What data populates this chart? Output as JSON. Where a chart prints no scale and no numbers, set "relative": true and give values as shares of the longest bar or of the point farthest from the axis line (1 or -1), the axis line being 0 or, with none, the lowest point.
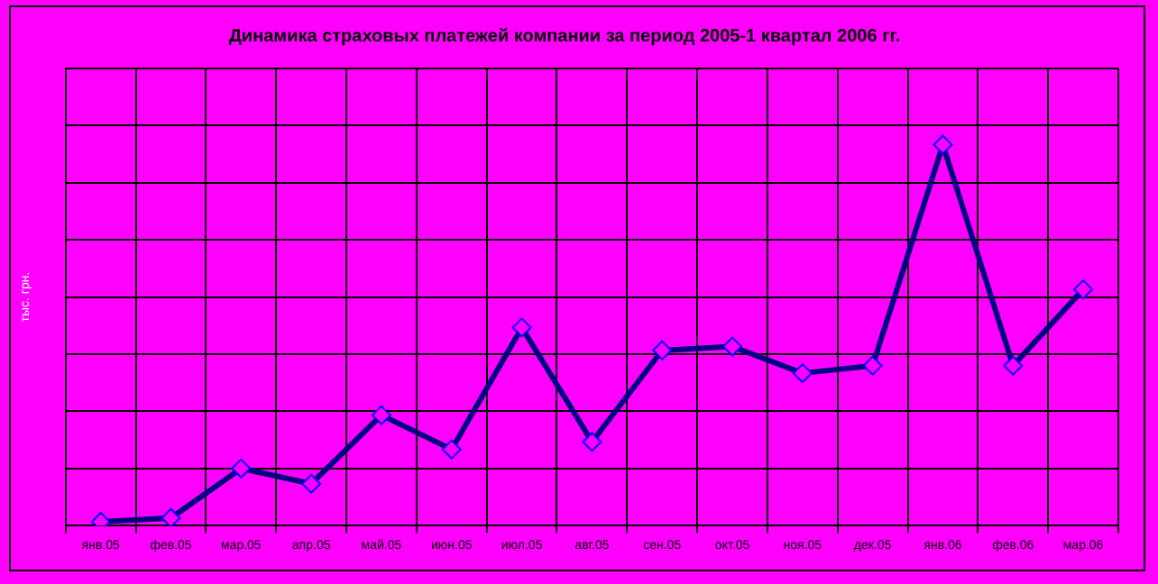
{
  "chart_data": {
    "type": "line",
    "title": "Динамика страховых платежей компании за период 2005-1 квартал 2006 гг.",
    "ylabel": "тыс. грн.",
    "categories": [
      "янв.05",
      "фев.05",
      "мар.05",
      "апр.05",
      "май.05",
      "июн.05",
      "июл.05",
      "авг.05",
      "сен.05",
      "окт.05",
      "ноя.05",
      "дек.05",
      "янв.06",
      "фев.06",
      "мар.06"
    ],
    "series": [
      {
        "color": "#000080",
        "values": [
          0.01,
          0.02,
          0.15,
          0.11,
          0.29,
          0.2,
          0.52,
          0.22,
          0.46,
          0.47,
          0.4,
          0.42,
          1,
          0.42,
          0.62
        ]
      }
    ],
    "relative": true,
    "grid": true,
    "legend": false,
    "marker": "diamond",
    "line_style": "solid"
  }
}
